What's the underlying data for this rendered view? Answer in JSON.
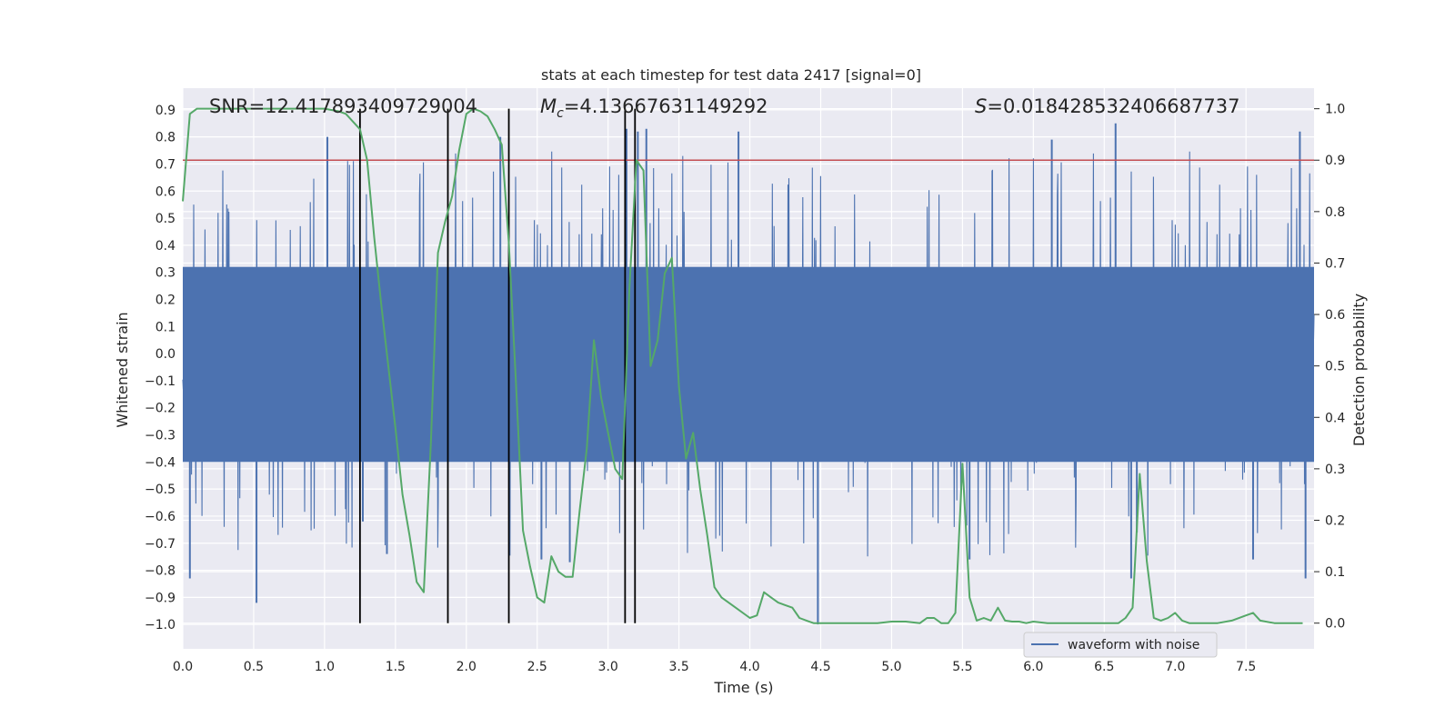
{
  "chart_data": {
    "type": "line",
    "title": "stats at each timestep for test data 2417 [signal=0]",
    "xlabel": "Time (s)",
    "ylabel_left": "Whitened strain",
    "ylabel_right": "Detection probability",
    "xlim": [
      0.0,
      7.98
    ],
    "ylim_left": [
      -1.09,
      0.98
    ],
    "ylim_right": [
      -0.05,
      1.04
    ],
    "x_ticks": [
      "0.0",
      "0.5",
      "1.0",
      "1.5",
      "2.0",
      "2.5",
      "3.0",
      "3.5",
      "4.0",
      "4.5",
      "5.0",
      "5.5",
      "6.0",
      "6.5",
      "7.0",
      "7.5"
    ],
    "y_left_ticks": [
      "0.9",
      "0.8",
      "0.7",
      "0.6",
      "0.5",
      "0.4",
      "0.3",
      "0.2",
      "0.1",
      "0.0",
      "−0.1",
      "−0.2",
      "−0.3",
      "−0.4",
      "−0.5",
      "−0.6",
      "−0.7",
      "−0.8",
      "−0.9",
      "−1.0"
    ],
    "y_right_ticks": [
      "1.0",
      "0.9",
      "0.8",
      "0.7",
      "0.6",
      "0.5",
      "0.4",
      "0.3",
      "0.2",
      "0.1",
      "0.0"
    ],
    "grid": true,
    "legend_position": "bottom-right",
    "annotations": {
      "snr": "SNR=12.417893409729004",
      "mc_prefix": "M",
      "mc_sub": "c",
      "mc_value": "=4.13667631149292",
      "s_prefix": "S",
      "s_value": "=0.018428532406687737"
    },
    "threshold": {
      "axis": "right",
      "value": 0.9,
      "color": "#c44e52"
    },
    "vertical_markers": [
      1.25,
      1.87,
      2.3,
      3.12,
      3.19
    ],
    "waveform": {
      "name": "waveform with noise",
      "color": "#4c72b0",
      "note_envelope_typical": 0.45,
      "sample_rate_hz": 4096,
      "spikes": [
        {
          "x": 0.05,
          "y": -0.83
        },
        {
          "x": 0.52,
          "y": -0.92
        },
        {
          "x": 1.02,
          "y": 0.8
        },
        {
          "x": 1.27,
          "y": -0.62
        },
        {
          "x": 1.44,
          "y": -0.74
        },
        {
          "x": 2.24,
          "y": 0.8
        },
        {
          "x": 2.53,
          "y": -0.76
        },
        {
          "x": 2.73,
          "y": -0.77
        },
        {
          "x": 3.13,
          "y": 0.83
        },
        {
          "x": 3.21,
          "y": 0.82
        },
        {
          "x": 3.27,
          "y": 0.83
        },
        {
          "x": 3.92,
          "y": 0.82
        },
        {
          "x": 4.48,
          "y": -1.0
        },
        {
          "x": 5.55,
          "y": -0.76
        },
        {
          "x": 6.13,
          "y": 0.79
        },
        {
          "x": 6.58,
          "y": 0.85
        },
        {
          "x": 6.69,
          "y": -0.83
        },
        {
          "x": 6.73,
          "y": -0.66
        },
        {
          "x": 7.55,
          "y": -0.76
        },
        {
          "x": 7.88,
          "y": 0.82
        },
        {
          "x": 7.92,
          "y": -0.83
        }
      ]
    },
    "series": [
      {
        "name": "detection probability",
        "axis": "right",
        "color": "#55a868",
        "x": [
          0.0,
          0.05,
          0.1,
          0.2,
          0.3,
          0.4,
          0.5,
          0.6,
          0.7,
          0.8,
          0.9,
          1.0,
          1.1,
          1.15,
          1.2,
          1.25,
          1.3,
          1.35,
          1.4,
          1.45,
          1.5,
          1.55,
          1.6,
          1.65,
          1.7,
          1.75,
          1.8,
          1.85,
          1.9,
          1.95,
          2.0,
          2.05,
          2.1,
          2.15,
          2.2,
          2.25,
          2.3,
          2.35,
          2.4,
          2.45,
          2.5,
          2.55,
          2.6,
          2.65,
          2.7,
          2.75,
          2.8,
          2.85,
          2.9,
          2.95,
          3.0,
          3.05,
          3.1,
          3.15,
          3.2,
          3.25,
          3.3,
          3.35,
          3.4,
          3.45,
          3.5,
          3.55,
          3.6,
          3.65,
          3.7,
          3.75,
          3.8,
          3.85,
          3.9,
          4.0,
          4.05,
          4.1,
          4.15,
          4.2,
          4.25,
          4.3,
          4.35,
          4.4,
          4.45,
          4.5,
          4.7,
          4.9,
          5.0,
          5.1,
          5.2,
          5.25,
          5.3,
          5.35,
          5.4,
          5.45,
          5.5,
          5.55,
          5.6,
          5.65,
          5.7,
          5.75,
          5.8,
          5.85,
          5.9,
          5.95,
          6.0,
          6.1,
          6.2,
          6.3,
          6.4,
          6.5,
          6.6,
          6.65,
          6.7,
          6.75,
          6.8,
          6.85,
          6.9,
          6.95,
          7.0,
          7.05,
          7.1,
          7.2,
          7.3,
          7.4,
          7.5,
          7.55,
          7.6,
          7.7,
          7.9
        ],
        "y": [
          0.82,
          0.99,
          1.0,
          1.0,
          1.0,
          1.0,
          1.0,
          1.0,
          1.0,
          1.0,
          1.0,
          1.0,
          0.995,
          0.99,
          0.975,
          0.96,
          0.9,
          0.75,
          0.62,
          0.5,
          0.38,
          0.25,
          0.17,
          0.08,
          0.06,
          0.35,
          0.72,
          0.78,
          0.83,
          0.92,
          0.99,
          1.0,
          0.995,
          0.985,
          0.96,
          0.93,
          0.74,
          0.47,
          0.18,
          0.11,
          0.05,
          0.04,
          0.13,
          0.1,
          0.09,
          0.09,
          0.22,
          0.34,
          0.55,
          0.44,
          0.37,
          0.3,
          0.28,
          0.65,
          0.9,
          0.88,
          0.5,
          0.55,
          0.68,
          0.71,
          0.46,
          0.32,
          0.37,
          0.26,
          0.17,
          0.07,
          0.05,
          0.04,
          0.03,
          0.01,
          0.015,
          0.06,
          0.05,
          0.04,
          0.035,
          0.03,
          0.01,
          0.005,
          0.0,
          0.0,
          0.0,
          0.0,
          0.003,
          0.003,
          0.0,
          0.01,
          0.01,
          0.0,
          0.0,
          0.02,
          0.31,
          0.05,
          0.005,
          0.01,
          0.005,
          0.03,
          0.005,
          0.003,
          0.003,
          0.0,
          0.003,
          0.0,
          0.0,
          0.0,
          0.0,
          0.0,
          0.0,
          0.01,
          0.03,
          0.29,
          0.12,
          0.01,
          0.005,
          0.01,
          0.02,
          0.005,
          0.0,
          0.0,
          0.0,
          0.005,
          0.015,
          0.02,
          0.005,
          0.0,
          0.0
        ]
      }
    ]
  }
}
